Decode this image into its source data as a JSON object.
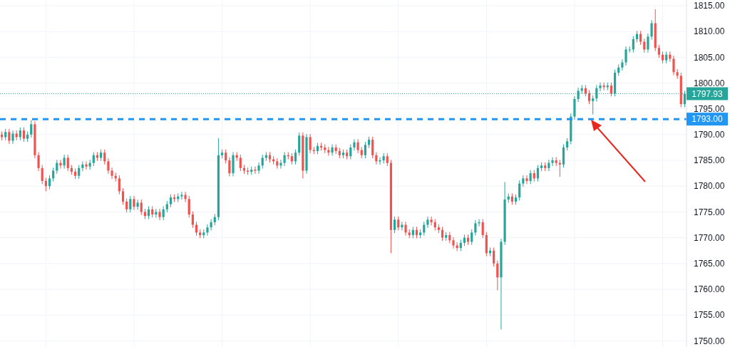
{
  "chart_data": {
    "type": "candlestick",
    "categories": [
      null,
      null,
      null,
      null,
      null,
      null,
      null,
      null,
      null,
      null,
      null,
      null,
      null,
      null,
      null,
      null,
      null,
      null,
      null,
      null,
      null,
      null,
      null,
      null,
      null,
      null,
      null,
      null,
      null,
      null,
      null,
      null,
      null,
      null,
      null,
      null,
      null,
      null,
      null,
      null,
      null,
      null,
      null,
      null,
      null,
      null,
      null,
      null,
      null,
      null,
      null,
      null,
      null,
      null,
      null,
      null,
      null,
      null,
      null,
      null,
      null,
      null,
      null,
      null,
      null,
      null,
      null,
      null,
      null,
      null,
      null,
      null,
      null,
      null,
      null,
      null,
      null,
      null,
      null,
      null,
      null,
      null,
      null,
      null,
      null,
      null,
      null,
      null,
      null,
      null,
      null,
      null,
      null,
      null,
      null,
      null,
      null,
      null,
      null,
      null,
      null,
      null,
      null,
      null,
      null,
      null,
      null,
      null,
      null,
      null,
      null,
      null,
      null,
      null,
      null,
      null,
      null,
      null,
      null,
      null,
      null,
      null,
      null,
      null,
      null,
      null,
      null,
      null,
      null,
      null,
      null,
      null,
      null,
      null,
      null,
      null,
      null,
      null,
      null,
      null,
      null,
      null,
      null,
      null,
      null,
      null,
      null,
      null,
      null,
      null,
      null,
      null,
      null,
      null,
      null,
      null,
      null,
      null,
      null,
      null,
      null,
      null,
      null,
      null,
      null,
      null,
      null,
      null,
      null,
      null,
      null,
      null,
      null,
      null,
      null,
      null,
      null,
      null,
      null,
      null,
      null,
      null,
      null,
      null,
      null,
      null,
      null
    ],
    "ohlc": [
      [
        1790.0,
        1790.6,
        1788.9,
        1789.5
      ],
      [
        1789.5,
        1791.1,
        1788.9,
        1790.5
      ],
      [
        1790.5,
        1791.1,
        1788.2,
        1788.8
      ],
      [
        1788.8,
        1790.8,
        1788.2,
        1790.2
      ],
      [
        1790.2,
        1790.8,
        1788.9,
        1789.5
      ],
      [
        1789.5,
        1791.4,
        1788.9,
        1790.8
      ],
      [
        1790.8,
        1791.4,
        1788.6,
        1789.2
      ],
      [
        1789.2,
        1790.6,
        1788.6,
        1790.0
      ],
      [
        1790.0,
        1792.8,
        1789.4,
        1792.0
      ],
      [
        1792.0,
        1792.6,
        1785.4,
        1786.0
      ],
      [
        1786.0,
        1786.6,
        1782.9,
        1783.5
      ],
      [
        1783.5,
        1784.1,
        1780.4,
        1781.0
      ],
      [
        1781.0,
        1781.6,
        1779.0,
        1780.0
      ],
      [
        1780.0,
        1782.1,
        1779.4,
        1781.5
      ],
      [
        1781.5,
        1783.6,
        1780.9,
        1783.0
      ],
      [
        1783.0,
        1785.1,
        1782.4,
        1784.5
      ],
      [
        1784.5,
        1785.1,
        1783.4,
        1784.0
      ],
      [
        1784.0,
        1786.1,
        1783.4,
        1785.5
      ],
      [
        1785.5,
        1786.1,
        1782.9,
        1783.5
      ],
      [
        1783.5,
        1784.1,
        1782.2,
        1782.8
      ],
      [
        1782.8,
        1783.4,
        1781.4,
        1782.0
      ],
      [
        1782.0,
        1784.1,
        1781.4,
        1783.5
      ],
      [
        1783.5,
        1784.8,
        1782.9,
        1784.2
      ],
      [
        1784.2,
        1784.8,
        1783.2,
        1783.8
      ],
      [
        1783.8,
        1785.1,
        1783.2,
        1784.5
      ],
      [
        1784.5,
        1786.6,
        1783.9,
        1786.0
      ],
      [
        1786.0,
        1786.6,
        1784.9,
        1785.5
      ],
      [
        1785.5,
        1787.1,
        1784.9,
        1786.5
      ],
      [
        1786.5,
        1787.1,
        1784.2,
        1784.8
      ],
      [
        1784.8,
        1785.4,
        1782.4,
        1783.0
      ],
      [
        1783.0,
        1783.6,
        1781.4,
        1782.0
      ],
      [
        1782.0,
        1782.6,
        1780.9,
        1781.5
      ],
      [
        1781.5,
        1782.1,
        1778.4,
        1779.0
      ],
      [
        1779.0,
        1779.6,
        1776.4,
        1777.0
      ],
      [
        1777.0,
        1777.6,
        1774.9,
        1775.5
      ],
      [
        1775.5,
        1778.1,
        1774.9,
        1777.5
      ],
      [
        1777.5,
        1778.1,
        1775.4,
        1776.0
      ],
      [
        1776.0,
        1777.4,
        1775.4,
        1776.8
      ],
      [
        1776.8,
        1777.4,
        1774.4,
        1775.0
      ],
      [
        1775.0,
        1775.6,
        1773.6,
        1774.2
      ],
      [
        1774.2,
        1776.1,
        1773.6,
        1775.5
      ],
      [
        1775.5,
        1776.1,
        1773.9,
        1774.5
      ],
      [
        1774.5,
        1775.6,
        1773.9,
        1775.0
      ],
      [
        1775.0,
        1775.6,
        1773.4,
        1774.0
      ],
      [
        1774.0,
        1776.1,
        1773.4,
        1775.5
      ],
      [
        1775.5,
        1777.1,
        1774.9,
        1776.5
      ],
      [
        1776.5,
        1778.4,
        1775.9,
        1777.8
      ],
      [
        1777.8,
        1778.4,
        1776.9,
        1777.5
      ],
      [
        1777.5,
        1778.6,
        1776.9,
        1778.0
      ],
      [
        1778.0,
        1778.9,
        1777.4,
        1778.3
      ],
      [
        1778.3,
        1778.9,
        1776.9,
        1777.5
      ],
      [
        1777.5,
        1778.1,
        1773.9,
        1774.5
      ],
      [
        1774.5,
        1775.1,
        1771.9,
        1772.5
      ],
      [
        1772.5,
        1773.1,
        1770.4,
        1771.0
      ],
      [
        1771.0,
        1771.6,
        1769.9,
        1770.5
      ],
      [
        1770.5,
        1771.6,
        1769.9,
        1771.0
      ],
      [
        1771.0,
        1772.6,
        1770.4,
        1772.0
      ],
      [
        1772.0,
        1773.6,
        1771.4,
        1773.0
      ],
      [
        1773.0,
        1774.6,
        1772.4,
        1774.0
      ],
      [
        1774.0,
        1789.3,
        1773.4,
        1786.0
      ],
      [
        1786.0,
        1787.1,
        1785.4,
        1786.5
      ],
      [
        1786.5,
        1787.1,
        1784.4,
        1785.0
      ],
      [
        1785.0,
        1785.6,
        1781.9,
        1782.5
      ],
      [
        1782.5,
        1786.6,
        1781.9,
        1786.0
      ],
      [
        1786.0,
        1786.6,
        1784.9,
        1785.5
      ],
      [
        1785.5,
        1786.1,
        1782.9,
        1783.5
      ],
      [
        1783.5,
        1784.1,
        1782.4,
        1783.0
      ],
      [
        1783.0,
        1783.6,
        1782.2,
        1782.8
      ],
      [
        1782.8,
        1783.8,
        1782.2,
        1783.2
      ],
      [
        1783.2,
        1783.8,
        1782.4,
        1783.0
      ],
      [
        1783.0,
        1784.6,
        1782.4,
        1784.0
      ],
      [
        1784.0,
        1786.1,
        1783.4,
        1785.5
      ],
      [
        1785.5,
        1786.6,
        1784.9,
        1786.0
      ],
      [
        1786.0,
        1786.6,
        1784.6,
        1785.2
      ],
      [
        1785.2,
        1785.8,
        1784.2,
        1784.8
      ],
      [
        1784.8,
        1785.4,
        1783.4,
        1784.0
      ],
      [
        1784.0,
        1785.1,
        1783.4,
        1784.5
      ],
      [
        1784.5,
        1786.6,
        1783.9,
        1786.0
      ],
      [
        1786.0,
        1786.6,
        1785.2,
        1785.8
      ],
      [
        1785.8,
        1786.4,
        1784.2,
        1784.8
      ],
      [
        1784.8,
        1787.1,
        1784.2,
        1786.5
      ],
      [
        1786.5,
        1790.4,
        1785.9,
        1789.8
      ],
      [
        1789.8,
        1790.4,
        1781.5,
        1783.0
      ],
      [
        1783.0,
        1790.1,
        1782.4,
        1789.5
      ],
      [
        1789.5,
        1790.1,
        1786.4,
        1787.0
      ],
      [
        1787.0,
        1787.6,
        1786.2,
        1786.8
      ],
      [
        1786.8,
        1788.4,
        1786.2,
        1787.8
      ],
      [
        1787.8,
        1788.4,
        1786.9,
        1787.5
      ],
      [
        1787.5,
        1788.1,
        1786.4,
        1787.0
      ],
      [
        1787.0,
        1787.6,
        1785.9,
        1786.5
      ],
      [
        1786.5,
        1788.1,
        1785.9,
        1787.5
      ],
      [
        1787.5,
        1788.1,
        1786.2,
        1786.8
      ],
      [
        1786.8,
        1787.4,
        1785.4,
        1786.0
      ],
      [
        1786.0,
        1787.1,
        1785.4,
        1786.5
      ],
      [
        1786.5,
        1787.1,
        1785.2,
        1785.8
      ],
      [
        1785.8,
        1788.1,
        1785.2,
        1787.5
      ],
      [
        1787.5,
        1789.1,
        1786.9,
        1788.5
      ],
      [
        1788.5,
        1789.1,
        1786.4,
        1787.0
      ],
      [
        1787.0,
        1787.6,
        1785.4,
        1786.0
      ],
      [
        1786.0,
        1788.6,
        1785.4,
        1788.0
      ],
      [
        1788.0,
        1789.6,
        1787.4,
        1789.0
      ],
      [
        1789.0,
        1789.6,
        1785.4,
        1786.0
      ],
      [
        1786.0,
        1786.6,
        1784.2,
        1784.8
      ],
      [
        1784.8,
        1785.6,
        1784.2,
        1785.0
      ],
      [
        1785.0,
        1786.4,
        1784.4,
        1785.8
      ],
      [
        1785.8,
        1786.4,
        1783.9,
        1784.5
      ],
      [
        1784.5,
        1785.1,
        1767.0,
        1771.5
      ],
      [
        1771.5,
        1774.1,
        1770.9,
        1773.5
      ],
      [
        1773.5,
        1774.1,
        1771.4,
        1772.0
      ],
      [
        1772.0,
        1773.1,
        1771.4,
        1772.5
      ],
      [
        1772.5,
        1773.1,
        1770.4,
        1771.0
      ],
      [
        1771.0,
        1771.6,
        1769.9,
        1770.5
      ],
      [
        1770.5,
        1772.1,
        1769.9,
        1771.5
      ],
      [
        1771.5,
        1772.1,
        1769.9,
        1770.5
      ],
      [
        1770.5,
        1771.6,
        1769.9,
        1771.0
      ],
      [
        1771.0,
        1773.1,
        1770.4,
        1772.5
      ],
      [
        1772.5,
        1774.1,
        1771.9,
        1773.5
      ],
      [
        1773.5,
        1774.1,
        1772.4,
        1773.0
      ],
      [
        1773.0,
        1773.6,
        1771.4,
        1772.0
      ],
      [
        1772.0,
        1772.6,
        1770.9,
        1771.5
      ],
      [
        1771.5,
        1772.1,
        1769.4,
        1770.0
      ],
      [
        1770.0,
        1771.1,
        1769.4,
        1770.5
      ],
      [
        1770.5,
        1771.1,
        1768.9,
        1769.5
      ],
      [
        1769.5,
        1770.1,
        1767.9,
        1768.5
      ],
      [
        1768.5,
        1769.1,
        1767.4,
        1768.0
      ],
      [
        1768.0,
        1769.6,
        1767.4,
        1769.0
      ],
      [
        1769.0,
        1770.6,
        1768.4,
        1770.0
      ],
      [
        1770.0,
        1770.6,
        1768.6,
        1769.2
      ],
      [
        1769.2,
        1771.6,
        1768.6,
        1771.0
      ],
      [
        1771.0,
        1773.4,
        1770.4,
        1772.8
      ],
      [
        1772.8,
        1773.6,
        1772.2,
        1773.0
      ],
      [
        1773.0,
        1773.6,
        1769.9,
        1770.5
      ],
      [
        1770.5,
        1771.1,
        1766.4,
        1767.0
      ],
      [
        1767.0,
        1768.1,
        1766.4,
        1767.5
      ],
      [
        1767.5,
        1768.1,
        1764.4,
        1765.0
      ],
      [
        1765.0,
        1765.6,
        1759.8,
        1762.3
      ],
      [
        1762.3,
        1769.8,
        1752.2,
        1769.2
      ],
      [
        1769.2,
        1780.8,
        1768.6,
        1777.4
      ],
      [
        1777.4,
        1778.6,
        1776.8,
        1778.0
      ],
      [
        1778.0,
        1778.6,
        1776.4,
        1777.0
      ],
      [
        1777.0,
        1778.4,
        1776.4,
        1777.8
      ],
      [
        1777.8,
        1781.1,
        1777.2,
        1780.5
      ],
      [
        1780.5,
        1782.1,
        1779.9,
        1781.5
      ],
      [
        1781.5,
        1782.1,
        1780.4,
        1781.0
      ],
      [
        1781.0,
        1783.1,
        1780.4,
        1782.5
      ],
      [
        1782.5,
        1783.1,
        1780.9,
        1781.5
      ],
      [
        1781.5,
        1784.1,
        1780.9,
        1783.5
      ],
      [
        1783.5,
        1784.6,
        1782.9,
        1784.0
      ],
      [
        1784.0,
        1784.6,
        1782.9,
        1783.5
      ],
      [
        1783.5,
        1785.1,
        1782.9,
        1784.5
      ],
      [
        1784.5,
        1785.6,
        1783.9,
        1785.0
      ],
      [
        1785.0,
        1785.6,
        1783.9,
        1784.5
      ],
      [
        1784.5,
        1785.1,
        1781.8,
        1784.2
      ],
      [
        1784.2,
        1788.1,
        1783.6,
        1787.5
      ],
      [
        1787.5,
        1789.3,
        1786.9,
        1788.7
      ],
      [
        1788.7,
        1794.1,
        1788.1,
        1793.5
      ],
      [
        1793.5,
        1797.5,
        1792.9,
        1796.9
      ],
      [
        1796.9,
        1799.1,
        1796.3,
        1798.5
      ],
      [
        1798.5,
        1799.6,
        1797.9,
        1799.0
      ],
      [
        1799.0,
        1799.6,
        1797.4,
        1798.0
      ],
      [
        1798.0,
        1798.6,
        1795.9,
        1796.5
      ],
      [
        1796.5,
        1797.6,
        1793.9,
        1797.0
      ],
      [
        1797.0,
        1799.6,
        1796.4,
        1799.0
      ],
      [
        1799.0,
        1800.1,
        1798.4,
        1799.5
      ],
      [
        1799.5,
        1800.1,
        1798.6,
        1799.2
      ],
      [
        1799.2,
        1800.1,
        1798.6,
        1799.5
      ],
      [
        1799.5,
        1800.1,
        1797.4,
        1798.0
      ],
      [
        1798.0,
        1802.6,
        1797.4,
        1802.0
      ],
      [
        1802.0,
        1803.6,
        1801.4,
        1803.0
      ],
      [
        1803.0,
        1804.6,
        1802.4,
        1804.0
      ],
      [
        1804.0,
        1807.1,
        1803.4,
        1806.5
      ],
      [
        1806.5,
        1807.1,
        1805.9,
        1806.5
      ],
      [
        1806.5,
        1809.1,
        1805.9,
        1808.5
      ],
      [
        1808.5,
        1810.1,
        1807.9,
        1809.5
      ],
      [
        1809.5,
        1810.1,
        1807.4,
        1808.0
      ],
      [
        1808.0,
        1808.6,
        1805.9,
        1806.5
      ],
      [
        1806.5,
        1809.6,
        1805.9,
        1809.0
      ],
      [
        1809.0,
        1812.2,
        1808.4,
        1811.6
      ],
      [
        1811.6,
        1814.3,
        1806.2,
        1806.8
      ],
      [
        1806.8,
        1807.4,
        1804.9,
        1805.5
      ],
      [
        1805.5,
        1806.1,
        1803.8,
        1804.4
      ],
      [
        1804.4,
        1806.1,
        1803.8,
        1805.5
      ],
      [
        1805.5,
        1806.1,
        1804.1,
        1804.7
      ],
      [
        1804.7,
        1805.3,
        1801.5,
        1802.1
      ],
      [
        1802.1,
        1802.7,
        1800.8,
        1801.4
      ],
      [
        1801.4,
        1802.0,
        1795.3,
        1795.9
      ],
      [
        1795.9,
        1798.5,
        1795.3,
        1797.93
      ]
    ],
    "ylim": [
      1748.8,
      1816.1
    ],
    "yticks": [
      {
        "value": 1750,
        "label": "1750.00"
      },
      {
        "value": 1755,
        "label": "1755.00"
      },
      {
        "value": 1760,
        "label": "1760.00"
      },
      {
        "value": 1765,
        "label": "1765.00"
      },
      {
        "value": 1770,
        "label": "1770.00"
      },
      {
        "value": 1775,
        "label": "1775.00"
      },
      {
        "value": 1780,
        "label": "1780.00"
      },
      {
        "value": 1785,
        "label": "1785.00"
      },
      {
        "value": 1790,
        "label": "1790.00"
      },
      {
        "value": 1795,
        "label": "1795.00"
      },
      {
        "value": 1800,
        "label": "1800.00"
      },
      {
        "value": 1805,
        "label": "1805.00"
      },
      {
        "value": 1810,
        "label": "1810.00"
      },
      {
        "value": 1815,
        "label": "1815.00"
      }
    ],
    "ref_lines": [
      {
        "axis": "y",
        "value": 1797.93,
        "label": "1797.93",
        "color": "#26a69a",
        "line_style": "dotted"
      },
      {
        "axis": "y",
        "value": 1793,
        "label": "1793.00",
        "color": "#2196f3",
        "line_style": "dashed"
      }
    ],
    "grid": true,
    "tick_labels": "y"
  }
}
